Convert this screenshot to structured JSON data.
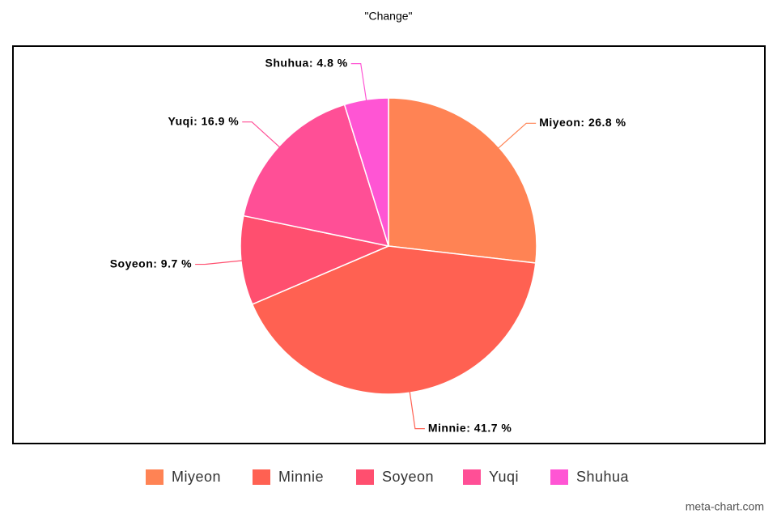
{
  "chart_data": {
    "type": "pie",
    "title": "\"Change\"",
    "categories": [
      "Miyeon",
      "Minnie",
      "Soyeon",
      "Yuqi",
      "Shuhua"
    ],
    "values": [
      26.8,
      41.7,
      9.7,
      16.9,
      4.8
    ],
    "value_labels": [
      "Miyeon: 26.8 %",
      "Minnie: 41.7 %",
      "Soyeon: 9.7 %",
      "Yuqi: 16.9 %",
      "Shuhua: 4.8 %"
    ],
    "colors": [
      "#ff8354",
      "#ff6152",
      "#ff4f6f",
      "#ff4f96",
      "#ff55d4"
    ],
    "legend": "bottom",
    "watermark": "meta-chart.com"
  }
}
